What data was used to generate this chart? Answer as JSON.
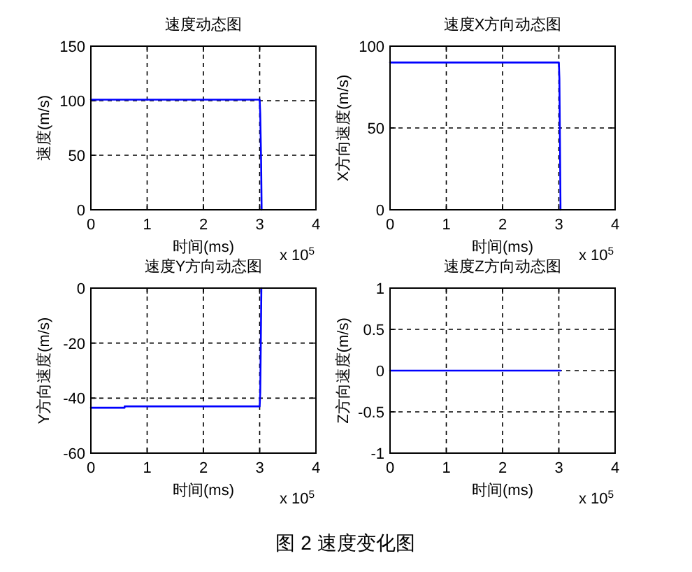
{
  "chart_data": [
    {
      "type": "line",
      "title": "速度动态图",
      "xlabel": "时间(ms)",
      "ylabel": "速度(m/s)",
      "series": [
        {
          "color": "#0000ff",
          "x": [
            0,
            3.0,
            3.01,
            3.025,
            3.035
          ],
          "values": [
            101,
            101,
            88,
            46,
            0
          ]
        }
      ],
      "xlim": [
        0,
        4
      ],
      "xticks": [
        0,
        1,
        2,
        3,
        4
      ],
      "ylim": [
        0,
        150
      ],
      "yticks": [
        0,
        50,
        100,
        150
      ],
      "grid": true,
      "line_style": "solid",
      "marker": "none",
      "annotations": [
        "x 10$^{5}$"
      ]
    },
    {
      "type": "line",
      "title": "速度X方向动态图",
      "xlabel": "时间(ms)",
      "ylabel": "X方向速度(m/s)",
      "series": [
        {
          "color": "#0000ff",
          "x": [
            0,
            3.0,
            3.01,
            3.02,
            3.03
          ],
          "values": [
            90,
            90,
            80,
            41,
            0
          ]
        }
      ],
      "xlim": [
        0,
        4
      ],
      "xticks": [
        0,
        1,
        2,
        3,
        4
      ],
      "ylim": [
        0,
        100
      ],
      "yticks": [
        0,
        50,
        100
      ],
      "grid": true,
      "line_style": "solid",
      "marker": "none",
      "annotations": [
        "x 10$^{5}$"
      ]
    },
    {
      "type": "line",
      "title": "速度Y方向动态图",
      "xlabel": "时间(ms)",
      "ylabel": "Y方向速度(m/s)",
      "series": [
        {
          "color": "#0000ff",
          "x": [
            0,
            0.6,
            0.6,
            3.0,
            3.01,
            3.02,
            3.03
          ],
          "values": [
            -43.5,
            -43.5,
            -43,
            -43,
            -38,
            -20,
            0
          ]
        }
      ],
      "xlim": [
        0,
        4
      ],
      "xticks": [
        0,
        1,
        2,
        3,
        4
      ],
      "ylim": [
        -60,
        0
      ],
      "yticks": [
        -60,
        -40,
        -20,
        0
      ],
      "grid": true,
      "line_style": "solid",
      "marker": "none",
      "annotations": [
        "x 10$^{5}$"
      ]
    },
    {
      "type": "line",
      "title": "速度Z方向动态图",
      "xlabel": "时间(ms)",
      "ylabel": "Z方向速度(m/s)",
      "series": [
        {
          "color": "#0000ff",
          "x": [
            0,
            3.03
          ],
          "values": [
            0,
            0
          ]
        }
      ],
      "xlim": [
        0,
        4
      ],
      "xticks": [
        0,
        1,
        2,
        3,
        4
      ],
      "ylim": [
        -1,
        1
      ],
      "yticks": [
        -1,
        -0.5,
        0,
        0.5,
        1
      ],
      "grid": true,
      "line_style": "solid",
      "marker": "none",
      "annotations": [
        "x 10$^{5}$",
        "图 2  速度变化图"
      ]
    }
  ]
}
